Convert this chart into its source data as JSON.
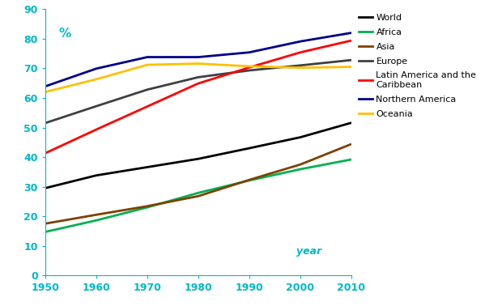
{
  "years": [
    1950,
    1960,
    1970,
    1980,
    1990,
    2000,
    2010
  ],
  "series": {
    "World": {
      "color": "#000000",
      "values": [
        29.5,
        33.8,
        36.6,
        39.4,
        43.0,
        46.7,
        51.6
      ]
    },
    "Africa": {
      "color": "#00b050",
      "values": [
        14.7,
        18.6,
        23.0,
        27.9,
        32.1,
        35.9,
        39.2
      ]
    },
    "Asia": {
      "color": "#7f4000",
      "values": [
        17.5,
        20.5,
        23.4,
        26.8,
        32.3,
        37.5,
        44.4
      ]
    },
    "Europe": {
      "color": "#404040",
      "values": [
        51.5,
        57.2,
        62.8,
        67.0,
        69.3,
        71.0,
        72.8
      ]
    },
    "Latin America and the\nCaribbean": {
      "color": "#ff0000",
      "values": [
        41.3,
        49.3,
        57.1,
        64.9,
        70.3,
        75.4,
        79.4
      ]
    },
    "Northern America": {
      "color": "#00008b",
      "values": [
        63.9,
        69.9,
        73.8,
        73.8,
        75.4,
        79.1,
        82.0
      ]
    },
    "Oceania": {
      "color": "#ffc000",
      "values": [
        62.0,
        66.3,
        71.2,
        71.6,
        70.7,
        70.2,
        70.5
      ]
    }
  },
  "xlabel": "year",
  "ylabel": "%",
  "ylim": [
    0,
    90
  ],
  "xlim": [
    1950,
    2010
  ],
  "yticks": [
    0,
    10,
    20,
    30,
    40,
    50,
    60,
    70,
    80,
    90
  ],
  "xticks": [
    1950,
    1960,
    1970,
    1980,
    1990,
    2000,
    2010
  ],
  "legend_order": [
    "World",
    "Africa",
    "Asia",
    "Europe",
    "Latin America and the\nCaribbean",
    "Northern America",
    "Oceania"
  ],
  "tick_color": "#00b8c8",
  "label_color": "#00b8c8",
  "background_color": "#ffffff",
  "linewidth": 2.0
}
